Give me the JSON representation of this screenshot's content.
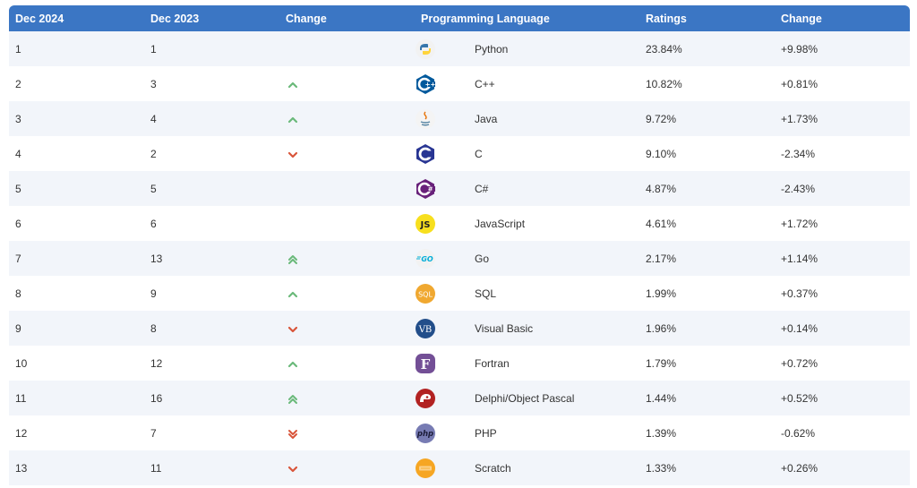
{
  "headers": {
    "dec2024": "Dec 2024",
    "dec2023": "Dec 2023",
    "change": "Change",
    "language": "Programming Language",
    "ratings": "Ratings",
    "ratings_change": "Change"
  },
  "colors": {
    "header_bg": "#3b76c4",
    "up": "#6ab97a",
    "down": "#d9553a",
    "row_alt": "#f2f5fa"
  },
  "rows": [
    {
      "dec2024": "1",
      "dec2023": "1",
      "trend": "none",
      "language": "Python",
      "logo": "python-logo-icon",
      "ratings": "23.84%",
      "change": "+9.98%"
    },
    {
      "dec2024": "2",
      "dec2023": "3",
      "trend": "up",
      "language": "C++",
      "logo": "cpp-logo-icon",
      "ratings": "10.82%",
      "change": "+0.81%"
    },
    {
      "dec2024": "3",
      "dec2023": "4",
      "trend": "up",
      "language": "Java",
      "logo": "java-logo-icon",
      "ratings": "9.72%",
      "change": "+1.73%"
    },
    {
      "dec2024": "4",
      "dec2023": "2",
      "trend": "down",
      "language": "C",
      "logo": "c-logo-icon",
      "ratings": "9.10%",
      "change": "-2.34%"
    },
    {
      "dec2024": "5",
      "dec2023": "5",
      "trend": "none",
      "language": "C#",
      "logo": "csharp-logo-icon",
      "ratings": "4.87%",
      "change": "-2.43%"
    },
    {
      "dec2024": "6",
      "dec2023": "6",
      "trend": "none",
      "language": "JavaScript",
      "logo": "javascript-logo-icon",
      "ratings": "4.61%",
      "change": "+1.72%"
    },
    {
      "dec2024": "7",
      "dec2023": "13",
      "trend": "up2",
      "language": "Go",
      "logo": "go-logo-icon",
      "ratings": "2.17%",
      "change": "+1.14%"
    },
    {
      "dec2024": "8",
      "dec2023": "9",
      "trend": "up",
      "language": "SQL",
      "logo": "sql-logo-icon",
      "ratings": "1.99%",
      "change": "+0.37%"
    },
    {
      "dec2024": "9",
      "dec2023": "8",
      "trend": "down",
      "language": "Visual Basic",
      "logo": "visual-basic-logo-icon",
      "ratings": "1.96%",
      "change": "+0.14%"
    },
    {
      "dec2024": "10",
      "dec2023": "12",
      "trend": "up",
      "language": "Fortran",
      "logo": "fortran-logo-icon",
      "ratings": "1.79%",
      "change": "+0.72%"
    },
    {
      "dec2024": "11",
      "dec2023": "16",
      "trend": "up2",
      "language": "Delphi/Object Pascal",
      "logo": "delphi-logo-icon",
      "ratings": "1.44%",
      "change": "+0.52%"
    },
    {
      "dec2024": "12",
      "dec2023": "7",
      "trend": "down2",
      "language": "PHP",
      "logo": "php-logo-icon",
      "ratings": "1.39%",
      "change": "-0.62%"
    },
    {
      "dec2024": "13",
      "dec2023": "11",
      "trend": "down",
      "language": "Scratch",
      "logo": "scratch-logo-icon",
      "ratings": "1.33%",
      "change": "+0.26%"
    }
  ]
}
